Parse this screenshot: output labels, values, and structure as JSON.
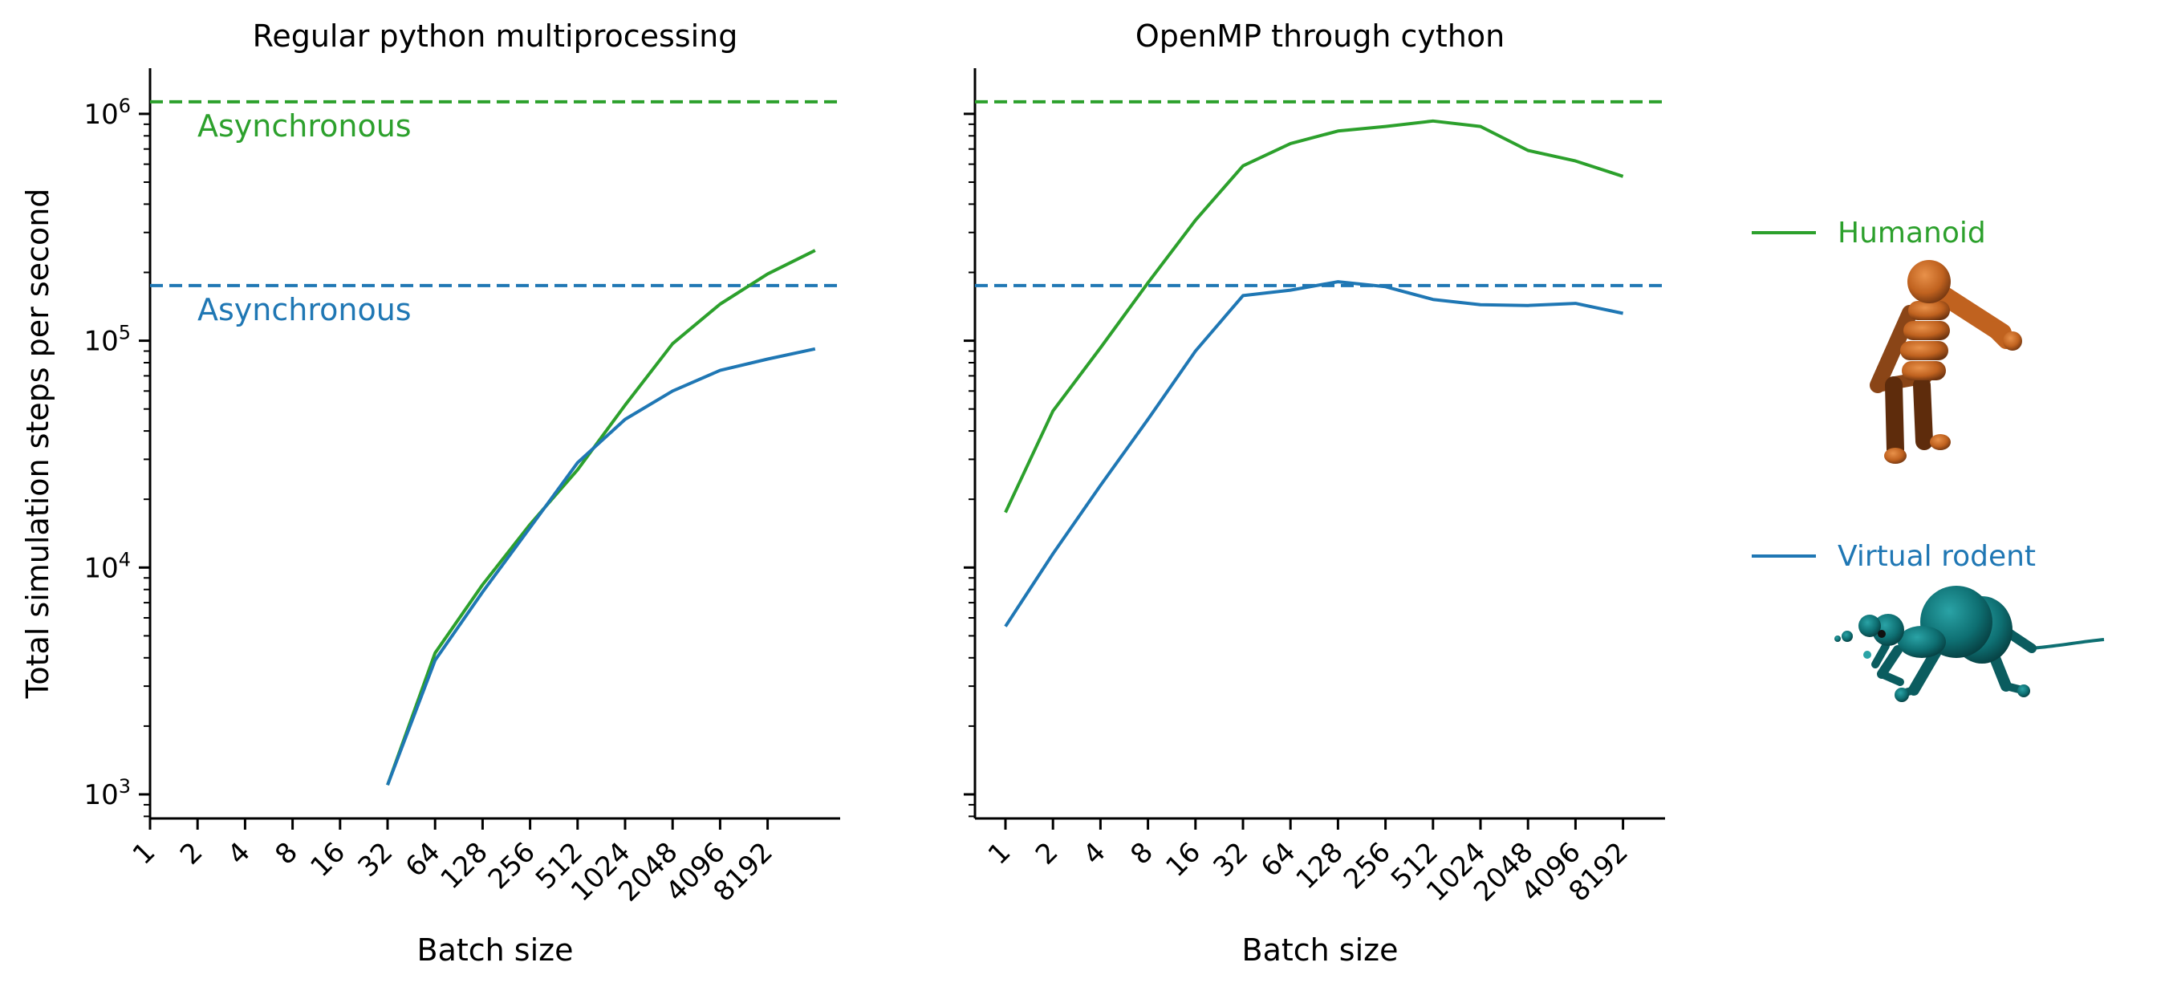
{
  "chart_data": [
    {
      "type": "line",
      "title": "Regular python multiprocessing",
      "xlabel": "Batch size",
      "ylabel": "Total simulation steps per second",
      "yscale": "log",
      "ylim": [
        750,
        1700000
      ],
      "x_ticks": [
        "1",
        "2",
        "4",
        "8",
        "16",
        "32",
        "64",
        "128",
        "256",
        "512",
        "1024",
        "2048",
        "4096",
        "8192"
      ],
      "y_ticks": [
        {
          "base": "10",
          "exp": "3",
          "value": 1000
        },
        {
          "base": "10",
          "exp": "4",
          "value": 10000
        },
        {
          "base": "10",
          "exp": "5",
          "value": 100000
        },
        {
          "base": "10",
          "exp": "6",
          "value": 1000000
        }
      ],
      "series": [
        {
          "name": "Humanoid",
          "color": "#2ca02c",
          "x": [
            32,
            64,
            128,
            256,
            512,
            1024,
            2048,
            4096,
            8192,
            16384
          ],
          "values": [
            1100,
            4200,
            8400,
            15500,
            27000,
            52000,
            97000,
            145000,
            197000,
            250000
          ]
        },
        {
          "name": "Virtual rodent",
          "color": "#1f77b4",
          "x": [
            32,
            64,
            128,
            256,
            512,
            1024,
            2048,
            4096,
            8192,
            16384
          ],
          "values": [
            1100,
            3900,
            7800,
            15000,
            29000,
            45000,
            60000,
            74000,
            83000,
            92000
          ]
        }
      ],
      "hlines": [
        {
          "value": 1130000,
          "color": "#2ca02c",
          "style": "dashed",
          "label": "Asynchronous"
        },
        {
          "value": 175000,
          "color": "#1f77b4",
          "style": "dashed",
          "label": "Asynchronous"
        }
      ]
    },
    {
      "type": "line",
      "title": "OpenMP through cython",
      "xlabel": "Batch size",
      "yscale": "log",
      "ylim": [
        750,
        1700000
      ],
      "x_ticks": [
        "1",
        "2",
        "4",
        "8",
        "16",
        "32",
        "64",
        "128",
        "256",
        "512",
        "1024",
        "2048",
        "4096",
        "8192"
      ],
      "series": [
        {
          "name": "Humanoid",
          "color": "#2ca02c",
          "x": [
            1,
            2,
            4,
            8,
            16,
            32,
            64,
            128,
            256,
            512,
            1024,
            2048,
            4096,
            8192
          ],
          "values": [
            17500,
            49000,
            93000,
            180000,
            340000,
            590000,
            740000,
            840000,
            880000,
            930000,
            880000,
            690000,
            620000,
            530000
          ]
        },
        {
          "name": "Virtual rodent",
          "color": "#1f77b4",
          "x": [
            1,
            2,
            4,
            8,
            16,
            32,
            64,
            128,
            256,
            512,
            1024,
            2048,
            4096,
            8192
          ],
          "values": [
            5500,
            11500,
            23000,
            45000,
            90000,
            158000,
            167000,
            182000,
            173000,
            152000,
            144000,
            143000,
            146000,
            132000
          ]
        }
      ],
      "hlines": [
        {
          "value": 1130000,
          "color": "#2ca02c",
          "style": "dashed"
        },
        {
          "value": 175000,
          "color": "#1f77b4",
          "style": "dashed"
        }
      ]
    }
  ],
  "legend": {
    "placement": "right",
    "entries": [
      {
        "label": "Humanoid",
        "color": "#2ca02c",
        "illustration": "humanoid-figure-icon"
      },
      {
        "label": "Virtual rodent",
        "color": "#1f77b4",
        "illustration": "rodent-figure-icon"
      }
    ]
  },
  "colors": {
    "humanoid_figure": "#c0621f",
    "rodent_figure": "#0e6f72"
  }
}
